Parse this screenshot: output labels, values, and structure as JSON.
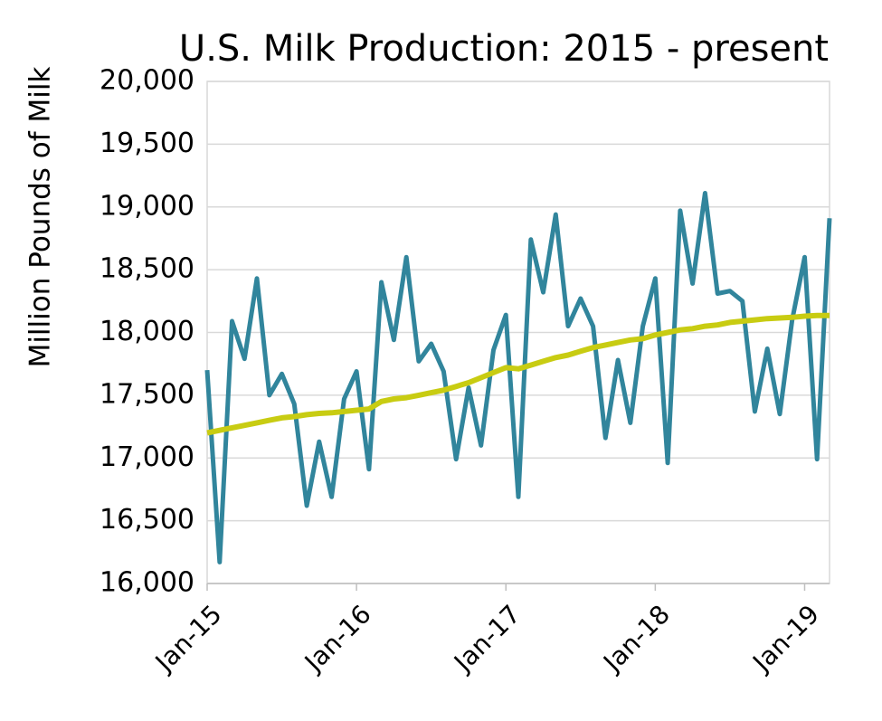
{
  "chart_data": {
    "type": "line",
    "title": "U.S. Milk Production: 2015 - present",
    "y_label": "Million Pounds of Milk",
    "categories": [
      "Jan-15",
      null,
      null,
      null,
      null,
      null,
      null,
      null,
      null,
      null,
      null,
      null,
      "Jan-16",
      null,
      null,
      null,
      null,
      null,
      null,
      null,
      null,
      null,
      null,
      null,
      "Jan-17",
      null,
      null,
      null,
      null,
      null,
      null,
      null,
      null,
      null,
      null,
      null,
      "Jan-18",
      null,
      null,
      null,
      null,
      null,
      null,
      null,
      null,
      null,
      null,
      null,
      "Jan-19",
      null,
      null
    ],
    "series": [
      {
        "color": "#31859c",
        "values": [
          17700,
          16170,
          18090,
          17790,
          18430,
          17500,
          17670,
          17430,
          16620,
          17130,
          16690,
          17470,
          17690,
          16910,
          18400,
          17940,
          18600,
          17770,
          17910,
          17690,
          16990,
          17560,
          17100,
          17860,
          18140,
          16690,
          18740,
          18320,
          18940,
          18050,
          18270,
          18050,
          17160,
          17780,
          17280,
          18050,
          18430,
          16960,
          18970,
          18390,
          19110,
          18310,
          18330,
          18250,
          17370,
          17870,
          17350,
          18100,
          18600,
          16990,
          18910
        ]
      },
      {
        "color": "#c8cc12",
        "values": [
          17200,
          17220,
          17240,
          17260,
          17280,
          17300,
          17320,
          17330,
          17345,
          17355,
          17360,
          17370,
          17380,
          17390,
          17450,
          17470,
          17480,
          17500,
          17520,
          17540,
          17570,
          17600,
          17640,
          17680,
          17720,
          17710,
          17740,
          17770,
          17800,
          17820,
          17850,
          17880,
          17900,
          17920,
          17940,
          17950,
          17980,
          18000,
          18020,
          18030,
          18050,
          18060,
          18080,
          18090,
          18100,
          18110,
          18115,
          18120,
          18130,
          18135,
          18135
        ]
      }
    ],
    "ylim": [
      16000,
      20000
    ],
    "yticks": [
      {
        "value": 16000,
        "label": "16,000"
      },
      {
        "value": 16500,
        "label": "16,500"
      },
      {
        "value": 17000,
        "label": "17,000"
      },
      {
        "value": 17500,
        "label": "17,500"
      },
      {
        "value": 18000,
        "label": "18,000"
      },
      {
        "value": 18500,
        "label": "18,500"
      },
      {
        "value": 19000,
        "label": "19,000"
      },
      {
        "value": 19500,
        "label": "19,500"
      },
      {
        "value": 20000,
        "label": "20,000"
      }
    ],
    "grid": true
  }
}
